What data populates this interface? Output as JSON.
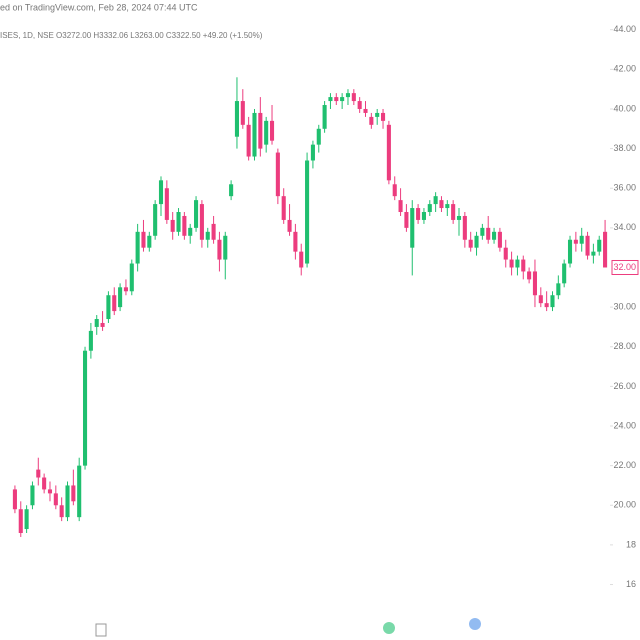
{
  "chart_data": {
    "type": "candlestick",
    "header": "ed on TradingView.com, Feb 28, 2024 07:44 UTC",
    "legend_line": "ISES, 1D, NSE O3272.00 H3332.06 L3263.00 C3322.50 +49.20 (+1.50%)",
    "up_color": "#1fbf6f",
    "down_color": "#ec3c7e",
    "ylim": [
      13.2,
      45.5
    ],
    "yticks": [
      {
        "value": 16,
        "label": "16"
      },
      {
        "value": 18,
        "label": "18"
      },
      {
        "value": 20,
        "label": "20.00"
      },
      {
        "value": 22,
        "label": "22.00"
      },
      {
        "value": 24,
        "label": "24.00"
      },
      {
        "value": 26,
        "label": "26.00"
      },
      {
        "value": 28,
        "label": "28.00"
      },
      {
        "value": 30,
        "label": "30.00"
      },
      {
        "value": 34,
        "label": "34.00"
      },
      {
        "value": 36,
        "label": "36.00"
      },
      {
        "value": 38,
        "label": "38.00"
      },
      {
        "value": 40,
        "label": "40.00"
      },
      {
        "value": 42,
        "label": "42.00"
      },
      {
        "value": 44,
        "label": "44.00"
      }
    ],
    "last_price": {
      "value": 32,
      "label": "32.00"
    },
    "candles": [
      {
        "open": 20.8,
        "high": 21.0,
        "low": 19.6,
        "close": 19.8
      },
      {
        "open": 19.8,
        "high": 20.2,
        "low": 18.4,
        "close": 18.6
      },
      {
        "open": 18.8,
        "high": 20.0,
        "low": 18.6,
        "close": 19.8
      },
      {
        "open": 20.0,
        "high": 21.2,
        "low": 19.8,
        "close": 21.0
      },
      {
        "open": 21.8,
        "high": 22.4,
        "low": 21.0,
        "close": 21.4
      },
      {
        "open": 21.4,
        "high": 21.6,
        "low": 20.6,
        "close": 20.8
      },
      {
        "open": 20.8,
        "high": 21.2,
        "low": 20.2,
        "close": 20.6
      },
      {
        "open": 20.6,
        "high": 21.0,
        "low": 19.8,
        "close": 20.0
      },
      {
        "open": 20.0,
        "high": 20.4,
        "low": 19.2,
        "close": 19.4
      },
      {
        "open": 19.4,
        "high": 21.2,
        "low": 19.2,
        "close": 21.0
      },
      {
        "open": 21.0,
        "high": 21.8,
        "low": 20.0,
        "close": 20.2
      },
      {
        "open": 19.4,
        "high": 22.4,
        "low": 19.2,
        "close": 22.0
      },
      {
        "open": 22.0,
        "high": 28.0,
        "low": 21.8,
        "close": 27.8
      },
      {
        "open": 27.8,
        "high": 29.2,
        "low": 27.4,
        "close": 28.8
      },
      {
        "open": 29.0,
        "high": 29.6,
        "low": 28.6,
        "close": 29.4
      },
      {
        "open": 29.2,
        "high": 29.8,
        "low": 28.8,
        "close": 29.0
      },
      {
        "open": 29.4,
        "high": 30.8,
        "low": 29.2,
        "close": 30.6
      },
      {
        "open": 30.6,
        "high": 31.0,
        "low": 29.6,
        "close": 29.8
      },
      {
        "open": 30.0,
        "high": 31.2,
        "low": 29.8,
        "close": 31.0
      },
      {
        "open": 31.0,
        "high": 31.4,
        "low": 30.6,
        "close": 30.8
      },
      {
        "open": 30.8,
        "high": 32.4,
        "low": 30.6,
        "close": 32.2
      },
      {
        "open": 32.2,
        "high": 34.2,
        "low": 31.8,
        "close": 33.8
      },
      {
        "open": 33.8,
        "high": 34.4,
        "low": 32.8,
        "close": 33.0
      },
      {
        "open": 33.0,
        "high": 33.8,
        "low": 32.8,
        "close": 33.6
      },
      {
        "open": 33.6,
        "high": 35.4,
        "low": 33.4,
        "close": 35.2
      },
      {
        "open": 35.2,
        "high": 36.6,
        "low": 34.6,
        "close": 36.4
      },
      {
        "open": 36.0,
        "high": 36.4,
        "low": 34.2,
        "close": 34.4
      },
      {
        "open": 34.4,
        "high": 34.8,
        "low": 33.4,
        "close": 33.8
      },
      {
        "open": 33.8,
        "high": 35.0,
        "low": 33.6,
        "close": 34.8
      },
      {
        "open": 34.6,
        "high": 34.8,
        "low": 33.4,
        "close": 33.6
      },
      {
        "open": 33.6,
        "high": 34.2,
        "low": 33.2,
        "close": 34.0
      },
      {
        "open": 34.0,
        "high": 35.6,
        "low": 33.8,
        "close": 35.4
      },
      {
        "open": 35.2,
        "high": 35.4,
        "low": 33.0,
        "close": 33.4
      },
      {
        "open": 33.4,
        "high": 34.0,
        "low": 33.0,
        "close": 33.8
      },
      {
        "open": 34.2,
        "high": 34.6,
        "low": 33.2,
        "close": 33.4
      },
      {
        "open": 33.4,
        "high": 33.8,
        "low": 31.8,
        "close": 32.4
      },
      {
        "open": 32.4,
        "high": 33.8,
        "low": 31.4,
        "close": 33.6
      },
      {
        "open": 35.6,
        "high": 36.4,
        "low": 35.4,
        "close": 36.2
      },
      {
        "open": 38.6,
        "high": 41.6,
        "low": 38.0,
        "close": 40.4
      },
      {
        "open": 40.4,
        "high": 41.0,
        "low": 39.0,
        "close": 39.2
      },
      {
        "open": 39.2,
        "high": 39.6,
        "low": 37.4,
        "close": 37.6
      },
      {
        "open": 37.6,
        "high": 40.0,
        "low": 37.4,
        "close": 39.8
      },
      {
        "open": 39.8,
        "high": 40.6,
        "low": 37.6,
        "close": 38.0
      },
      {
        "open": 38.2,
        "high": 39.6,
        "low": 37.8,
        "close": 39.4
      },
      {
        "open": 39.4,
        "high": 40.2,
        "low": 38.2,
        "close": 38.4
      },
      {
        "open": 37.8,
        "high": 38.0,
        "low": 35.2,
        "close": 35.6
      },
      {
        "open": 35.6,
        "high": 36.0,
        "low": 34.2,
        "close": 34.4
      },
      {
        "open": 34.4,
        "high": 35.2,
        "low": 33.6,
        "close": 33.8
      },
      {
        "open": 33.8,
        "high": 34.2,
        "low": 32.4,
        "close": 32.8
      },
      {
        "open": 32.8,
        "high": 33.2,
        "low": 31.6,
        "close": 32.0
      },
      {
        "open": 32.2,
        "high": 37.8,
        "low": 32.0,
        "close": 37.4
      },
      {
        "open": 37.4,
        "high": 38.4,
        "low": 37.0,
        "close": 38.2
      },
      {
        "open": 38.2,
        "high": 39.2,
        "low": 37.8,
        "close": 39.0
      },
      {
        "open": 39.0,
        "high": 40.4,
        "low": 38.8,
        "close": 40.2
      },
      {
        "open": 40.4,
        "high": 40.8,
        "low": 40.0,
        "close": 40.6
      },
      {
        "open": 40.6,
        "high": 40.8,
        "low": 40.2,
        "close": 40.4
      },
      {
        "open": 40.4,
        "high": 40.8,
        "low": 40.0,
        "close": 40.6
      },
      {
        "open": 40.6,
        "high": 41.0,
        "low": 40.2,
        "close": 40.8
      },
      {
        "open": 40.8,
        "high": 41.0,
        "low": 40.2,
        "close": 40.4
      },
      {
        "open": 40.4,
        "high": 40.6,
        "low": 39.8,
        "close": 40.0
      },
      {
        "open": 40.0,
        "high": 40.4,
        "low": 39.6,
        "close": 39.8
      },
      {
        "open": 39.6,
        "high": 39.8,
        "low": 39.0,
        "close": 39.2
      },
      {
        "open": 39.6,
        "high": 40.0,
        "low": 39.2,
        "close": 39.8
      },
      {
        "open": 39.8,
        "high": 40.0,
        "low": 39.0,
        "close": 39.4
      },
      {
        "open": 39.2,
        "high": 39.4,
        "low": 36.2,
        "close": 36.4
      },
      {
        "open": 36.2,
        "high": 36.6,
        "low": 35.4,
        "close": 35.6
      },
      {
        "open": 35.4,
        "high": 36.0,
        "low": 34.6,
        "close": 34.8
      },
      {
        "open": 34.8,
        "high": 35.2,
        "low": 33.8,
        "close": 34.0
      },
      {
        "open": 33.0,
        "high": 35.4,
        "low": 31.6,
        "close": 35.0
      },
      {
        "open": 35.0,
        "high": 35.2,
        "low": 34.2,
        "close": 34.4
      },
      {
        "open": 34.4,
        "high": 35.0,
        "low": 34.2,
        "close": 34.8
      },
      {
        "open": 34.8,
        "high": 35.4,
        "low": 34.6,
        "close": 35.2
      },
      {
        "open": 35.2,
        "high": 35.8,
        "low": 34.8,
        "close": 35.6
      },
      {
        "open": 35.4,
        "high": 35.6,
        "low": 34.8,
        "close": 35.0
      },
      {
        "open": 35.0,
        "high": 35.4,
        "low": 34.6,
        "close": 35.2
      },
      {
        "open": 35.2,
        "high": 35.4,
        "low": 34.2,
        "close": 34.4
      },
      {
        "open": 34.4,
        "high": 35.0,
        "low": 33.6,
        "close": 34.6
      },
      {
        "open": 34.6,
        "high": 34.8,
        "low": 33.0,
        "close": 33.4
      },
      {
        "open": 33.4,
        "high": 33.8,
        "low": 32.8,
        "close": 33.0
      },
      {
        "open": 33.0,
        "high": 33.8,
        "low": 32.6,
        "close": 33.6
      },
      {
        "open": 33.6,
        "high": 34.2,
        "low": 33.4,
        "close": 34.0
      },
      {
        "open": 34.0,
        "high": 34.6,
        "low": 33.2,
        "close": 33.4
      },
      {
        "open": 33.4,
        "high": 34.0,
        "low": 33.2,
        "close": 33.8
      },
      {
        "open": 33.8,
        "high": 34.0,
        "low": 32.8,
        "close": 33.0
      },
      {
        "open": 33.0,
        "high": 33.4,
        "low": 32.0,
        "close": 32.4
      },
      {
        "open": 32.4,
        "high": 32.8,
        "low": 31.6,
        "close": 32.0
      },
      {
        "open": 32.0,
        "high": 32.6,
        "low": 31.6,
        "close": 32.4
      },
      {
        "open": 32.4,
        "high": 32.6,
        "low": 31.4,
        "close": 31.8
      },
      {
        "open": 31.8,
        "high": 32.0,
        "low": 31.2,
        "close": 31.4
      },
      {
        "open": 31.8,
        "high": 32.4,
        "low": 30.0,
        "close": 30.6
      },
      {
        "open": 30.6,
        "high": 31.0,
        "low": 30.0,
        "close": 30.2
      },
      {
        "open": 30.2,
        "high": 30.8,
        "low": 29.8,
        "close": 30.0
      },
      {
        "open": 30.0,
        "high": 30.8,
        "low": 29.8,
        "close": 30.6
      },
      {
        "open": 30.6,
        "high": 31.6,
        "low": 30.4,
        "close": 31.2
      },
      {
        "open": 31.2,
        "high": 32.4,
        "low": 31.0,
        "close": 32.2
      },
      {
        "open": 32.2,
        "high": 33.6,
        "low": 32.0,
        "close": 33.4
      },
      {
        "open": 33.4,
        "high": 33.8,
        "low": 32.8,
        "close": 33.2
      },
      {
        "open": 33.2,
        "high": 34.0,
        "low": 32.8,
        "close": 33.6
      },
      {
        "open": 33.6,
        "high": 33.8,
        "low": 32.4,
        "close": 32.6
      },
      {
        "open": 32.6,
        "high": 33.2,
        "low": 32.2,
        "close": 32.8
      },
      {
        "open": 32.8,
        "high": 33.6,
        "low": 32.6,
        "close": 33.4
      },
      {
        "open": 33.8,
        "high": 34.4,
        "low": 32.0,
        "close": 32.0
      }
    ]
  }
}
